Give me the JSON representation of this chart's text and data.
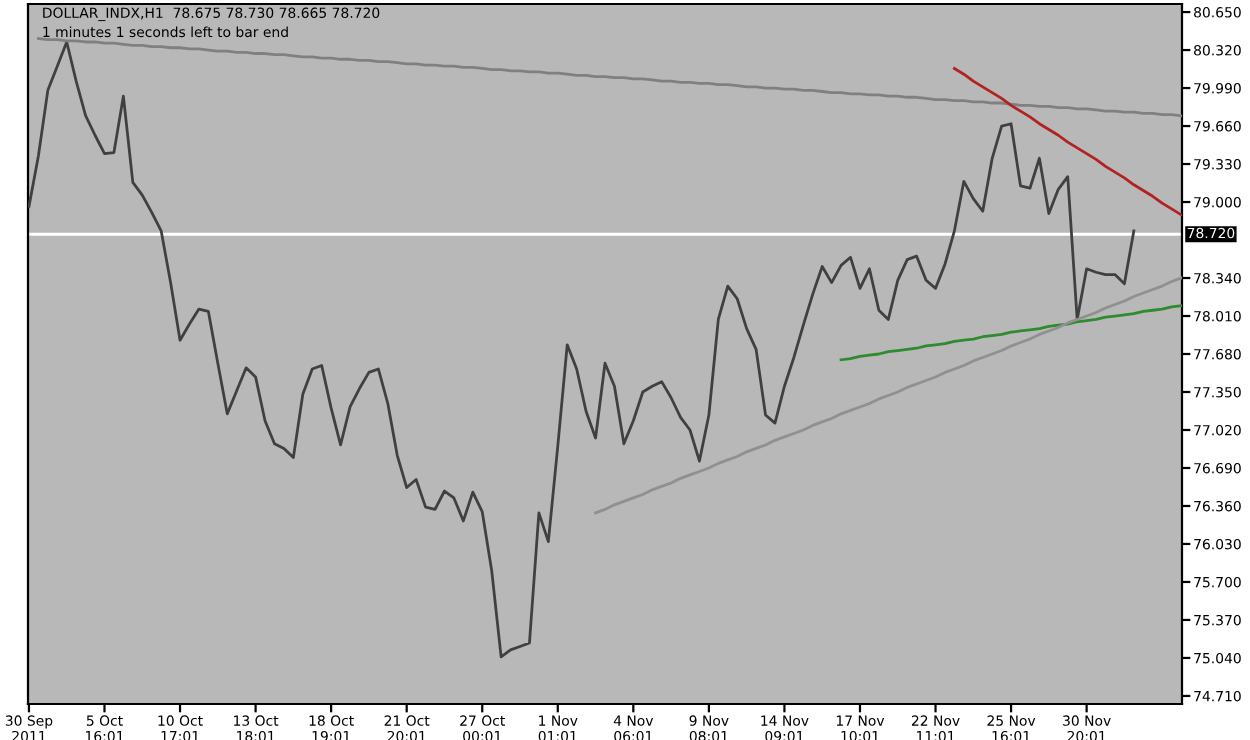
{
  "chart_data": {
    "type": "line",
    "title": "DOLLAR_INDX,H1  78.675 78.730 78.665 78.720",
    "subtitle": "1 minutes 1 seconds left to bar end",
    "categories": [
      "30 Sep 2011",
      null,
      null,
      null,
      null,
      null,
      null,
      null,
      "5 Oct 16:01",
      null,
      null,
      null,
      null,
      null,
      null,
      null,
      "10 Oct 17:01",
      null,
      null,
      null,
      null,
      null,
      null,
      null,
      "13 Oct 18:01",
      null,
      null,
      null,
      null,
      null,
      null,
      null,
      "18 Oct 19:01",
      null,
      null,
      null,
      null,
      null,
      null,
      null,
      "21 Oct 20:01",
      null,
      null,
      null,
      null,
      null,
      null,
      null,
      "27 Oct 00:01",
      null,
      null,
      null,
      null,
      null,
      null,
      null,
      "1 Nov 01:01",
      null,
      null,
      null,
      null,
      null,
      null,
      null,
      "4 Nov 06:01",
      null,
      null,
      null,
      null,
      null,
      null,
      null,
      "9 Nov 08:01",
      null,
      null,
      null,
      null,
      null,
      null,
      null,
      "14 Nov 09:01",
      null,
      null,
      null,
      null,
      null,
      null,
      null,
      "17 Nov 10:01",
      null,
      null,
      null,
      null,
      null,
      null,
      null,
      "22 Nov 11:01",
      null,
      null,
      null,
      null,
      null,
      null,
      null,
      "25 Nov 16:01",
      null,
      null,
      null,
      null,
      null,
      null,
      null,
      "30 Nov 20:01",
      null,
      null,
      null,
      null,
      null,
      null,
      null,
      null,
      null,
      null
    ],
    "series": [
      {
        "color": "#404040",
        "values": [
          78.96,
          79.4,
          79.97,
          80.18,
          80.39,
          80.05,
          79.75,
          79.58,
          79.42,
          79.43,
          79.92,
          79.17,
          79.06,
          78.91,
          78.75,
          78.3,
          77.8,
          77.94,
          78.07,
          78.05,
          77.6,
          77.16,
          77.36,
          77.56,
          77.48,
          77.1,
          76.9,
          76.86,
          76.78,
          77.33,
          77.55,
          77.58,
          77.21,
          76.89,
          77.22,
          77.38,
          77.52,
          77.55,
          77.25,
          76.8,
          76.52,
          76.59,
          76.35,
          76.33,
          76.49,
          76.43,
          76.23,
          76.48,
          76.31,
          75.8,
          75.05,
          75.11,
          75.14,
          75.17,
          76.3,
          76.05,
          76.88,
          77.76,
          77.55,
          77.18,
          76.95,
          77.6,
          77.4,
          76.9,
          77.1,
          77.35,
          77.4,
          77.44,
          77.3,
          77.13,
          77.02,
          76.75,
          77.15,
          77.98,
          78.27,
          78.16,
          77.9,
          77.72,
          77.15,
          77.08,
          77.4,
          77.65,
          77.93,
          78.2,
          78.44,
          78.3,
          78.45,
          78.52,
          78.25,
          78.42,
          78.06,
          77.98,
          78.32,
          78.5,
          78.53,
          78.32,
          78.25,
          78.46,
          78.75,
          79.18,
          79.03,
          78.92,
          79.38,
          79.66,
          79.68,
          79.14,
          79.12,
          79.38,
          78.9,
          79.11,
          79.22,
          77.98,
          78.42,
          78.39,
          78.37,
          78.37,
          78.29,
          78.75,
          null,
          null,
          null,
          null,
          null
        ]
      },
      {
        "color": "#808080",
        "values": [
          null,
          80.42,
          80.41,
          80.41,
          80.4,
          80.4,
          80.39,
          80.39,
          80.38,
          80.38,
          80.37,
          80.36,
          80.36,
          80.35,
          80.35,
          80.34,
          80.34,
          80.33,
          80.33,
          80.32,
          80.31,
          80.31,
          80.3,
          80.3,
          80.29,
          80.29,
          80.28,
          80.28,
          80.27,
          80.26,
          80.26,
          80.25,
          80.25,
          80.24,
          80.24,
          80.23,
          80.23,
          80.22,
          80.22,
          80.21,
          80.2,
          80.2,
          80.19,
          80.19,
          80.18,
          80.18,
          80.17,
          80.17,
          80.16,
          80.15,
          80.15,
          80.14,
          80.14,
          80.13,
          80.13,
          80.12,
          80.12,
          80.11,
          80.1,
          80.1,
          80.09,
          80.09,
          80.08,
          80.08,
          80.07,
          80.07,
          80.06,
          80.05,
          80.05,
          80.04,
          80.04,
          80.03,
          80.03,
          80.02,
          80.02,
          80.01,
          80.0,
          80.0,
          79.99,
          79.99,
          79.98,
          79.98,
          79.97,
          79.97,
          79.96,
          79.95,
          79.95,
          79.94,
          79.94,
          79.93,
          79.93,
          79.92,
          79.92,
          79.91,
          79.91,
          79.9,
          79.89,
          79.89,
          79.88,
          79.88,
          79.87,
          79.87,
          79.86,
          79.86,
          79.85,
          79.84,
          79.84,
          79.83,
          79.83,
          79.82,
          79.82,
          79.81,
          79.81,
          79.8,
          79.79,
          79.79,
          79.78,
          79.78,
          79.77,
          79.77,
          79.76,
          79.76,
          79.75
        ]
      },
      {
        "color": "#b22222",
        "values": [
          null,
          null,
          null,
          null,
          null,
          null,
          null,
          null,
          null,
          null,
          null,
          null,
          null,
          null,
          null,
          null,
          null,
          null,
          null,
          null,
          null,
          null,
          null,
          null,
          null,
          null,
          null,
          null,
          null,
          null,
          null,
          null,
          null,
          null,
          null,
          null,
          null,
          null,
          null,
          null,
          null,
          null,
          null,
          null,
          null,
          null,
          null,
          null,
          null,
          null,
          null,
          null,
          null,
          null,
          null,
          null,
          null,
          null,
          null,
          null,
          null,
          null,
          null,
          null,
          null,
          null,
          null,
          null,
          null,
          null,
          null,
          null,
          null,
          null,
          null,
          null,
          null,
          null,
          null,
          null,
          null,
          null,
          null,
          null,
          null,
          null,
          null,
          null,
          null,
          null,
          null,
          null,
          null,
          null,
          null,
          null,
          null,
          null,
          80.16,
          80.11,
          80.05,
          80.0,
          79.95,
          79.9,
          79.84,
          79.79,
          79.74,
          79.68,
          79.63,
          79.58,
          79.52,
          79.47,
          79.42,
          79.37,
          79.31,
          79.26,
          79.21,
          79.15,
          79.1,
          79.05,
          78.99,
          78.94,
          78.89
        ]
      },
      {
        "color": "#2e8b2e",
        "values": [
          null,
          null,
          null,
          null,
          null,
          null,
          null,
          null,
          null,
          null,
          null,
          null,
          null,
          null,
          null,
          null,
          null,
          null,
          null,
          null,
          null,
          null,
          null,
          null,
          null,
          null,
          null,
          null,
          null,
          null,
          null,
          null,
          null,
          null,
          null,
          null,
          null,
          null,
          null,
          null,
          null,
          null,
          null,
          null,
          null,
          null,
          null,
          null,
          null,
          null,
          null,
          null,
          null,
          null,
          null,
          null,
          null,
          null,
          null,
          null,
          null,
          null,
          null,
          null,
          null,
          null,
          null,
          null,
          null,
          null,
          null,
          null,
          null,
          null,
          null,
          null,
          null,
          null,
          null,
          null,
          null,
          null,
          null,
          null,
          null,
          null,
          77.63,
          77.64,
          77.66,
          77.67,
          77.68,
          77.7,
          77.71,
          77.72,
          77.73,
          77.75,
          77.76,
          77.77,
          77.79,
          77.8,
          77.81,
          77.83,
          77.84,
          77.85,
          77.87,
          77.88,
          77.89,
          77.9,
          77.92,
          77.93,
          77.94,
          77.96,
          77.97,
          77.98,
          78.0,
          78.01,
          78.02,
          78.03,
          78.05,
          78.06,
          78.07,
          78.09,
          78.1
        ]
      },
      {
        "color": "#909090",
        "values": [
          null,
          null,
          null,
          null,
          null,
          null,
          null,
          null,
          null,
          null,
          null,
          null,
          null,
          null,
          null,
          null,
          null,
          null,
          null,
          null,
          null,
          null,
          null,
          null,
          null,
          null,
          null,
          null,
          null,
          null,
          null,
          null,
          null,
          null,
          null,
          null,
          null,
          null,
          null,
          null,
          null,
          null,
          null,
          null,
          null,
          null,
          null,
          null,
          null,
          null,
          null,
          null,
          null,
          null,
          null,
          null,
          null,
          null,
          null,
          null,
          76.3,
          76.33,
          76.37,
          76.4,
          76.43,
          76.46,
          76.5,
          76.53,
          76.56,
          76.6,
          76.63,
          76.66,
          76.69,
          76.73,
          76.76,
          76.79,
          76.83,
          76.86,
          76.89,
          76.93,
          76.96,
          76.99,
          77.02,
          77.06,
          77.09,
          77.12,
          77.16,
          77.19,
          77.22,
          77.25,
          77.29,
          77.32,
          77.35,
          77.39,
          77.42,
          77.45,
          77.48,
          77.52,
          77.55,
          77.58,
          77.62,
          77.65,
          77.68,
          77.71,
          77.75,
          77.78,
          77.81,
          77.85,
          77.88,
          77.91,
          77.95,
          77.98,
          78.01,
          78.04,
          78.08,
          78.11,
          78.14,
          78.18,
          78.21,
          78.24,
          78.27,
          78.31,
          78.34
        ]
      }
    ],
    "ref_lines": [
      {
        "axis": "y",
        "value": 78.72,
        "label": "78.720",
        "color": "#ffffff"
      }
    ],
    "ylim": [
      74.64,
      80.72
    ],
    "yticks": [
      {
        "value": 80.65,
        "label": "80.650"
      },
      {
        "value": 80.32,
        "label": "80.320"
      },
      {
        "value": 79.99,
        "label": "79.990"
      },
      {
        "value": 79.66,
        "label": "79.660"
      },
      {
        "value": 79.33,
        "label": "79.330"
      },
      {
        "value": 79.0,
        "label": "79.000"
      },
      {
        "value": 78.34,
        "label": "78.340"
      },
      {
        "value": 78.01,
        "label": "78.010"
      },
      {
        "value": 77.68,
        "label": "77.680"
      },
      {
        "value": 77.35,
        "label": "77.350"
      },
      {
        "value": 77.02,
        "label": "77.020"
      },
      {
        "value": 76.69,
        "label": "76.690"
      },
      {
        "value": 76.36,
        "label": "76.360"
      },
      {
        "value": 76.03,
        "label": "76.030"
      },
      {
        "value": 75.7,
        "label": "75.700"
      },
      {
        "value": 75.37,
        "label": "75.370"
      },
      {
        "value": 75.04,
        "label": "75.040"
      },
      {
        "value": 74.71,
        "label": "74.710"
      }
    ],
    "grid": false,
    "legend": false,
    "marker": "none",
    "line_style": "solid"
  }
}
